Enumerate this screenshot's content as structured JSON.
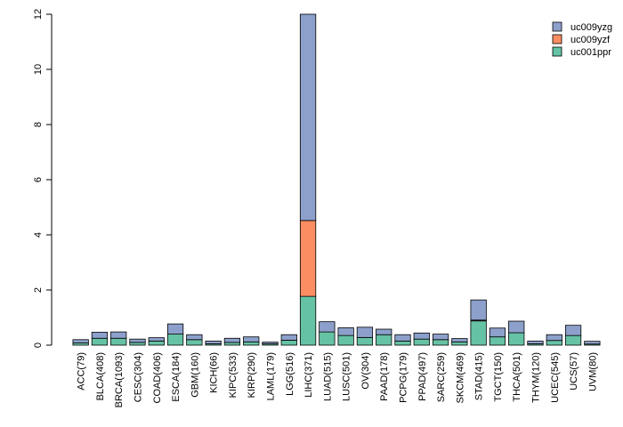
{
  "chart_data": {
    "type": "bar",
    "stacked": true,
    "title": "",
    "xlabel": "",
    "ylabel": "",
    "ylim": [
      0,
      12
    ],
    "yticks": [
      0,
      2,
      4,
      6,
      8,
      10,
      12
    ],
    "legend_position": "top-right",
    "categories": [
      "ACC(79)",
      "BLCA(408)",
      "BRCA(1093)",
      "CESC(304)",
      "COAD(406)",
      "ESCA(184)",
      "GBM(160)",
      "KICH(66)",
      "KIPC(533)",
      "KIRP(290)",
      "LAML(179)",
      "LGG(516)",
      "LIHC(371)",
      "LUAD(515)",
      "LUSC(501)",
      "OV(304)",
      "PAAD(178)",
      "PCPG(179)",
      "PPAD(497)",
      "SARC(259)",
      "SKCM(469)",
      "STAD(415)",
      "TGCT(150)",
      "THCA(501)",
      "THYM(120)",
      "UCEC(545)",
      "UCS(57)",
      "UVM(80)"
    ],
    "series": [
      {
        "name": "uc001ppr",
        "color": "#66c2a5",
        "values": [
          0.08,
          0.25,
          0.25,
          0.1,
          0.15,
          0.4,
          0.2,
          0.05,
          0.1,
          0.12,
          0.05,
          0.18,
          1.77,
          0.48,
          0.35,
          0.28,
          0.38,
          0.15,
          0.22,
          0.2,
          0.12,
          0.88,
          0.3,
          0.45,
          0.05,
          0.17,
          0.35,
          0.04
        ]
      },
      {
        "name": "uc009yzf",
        "color": "#fc8d62",
        "values": [
          0,
          0,
          0,
          0,
          0,
          0,
          0,
          0,
          0,
          0,
          0,
          0,
          2.75,
          0,
          0,
          0,
          0,
          0,
          0,
          0,
          0,
          0.03,
          0,
          0,
          0,
          0,
          0,
          0
        ]
      },
      {
        "name": "uc009yzg",
        "color": "#8da0cb",
        "values": [
          0.12,
          0.22,
          0.23,
          0.12,
          0.12,
          0.37,
          0.18,
          0.1,
          0.15,
          0.18,
          0.06,
          0.2,
          7.48,
          0.37,
          0.28,
          0.37,
          0.2,
          0.23,
          0.22,
          0.2,
          0.12,
          0.73,
          0.32,
          0.42,
          0.1,
          0.21,
          0.37,
          0.1
        ]
      }
    ]
  }
}
